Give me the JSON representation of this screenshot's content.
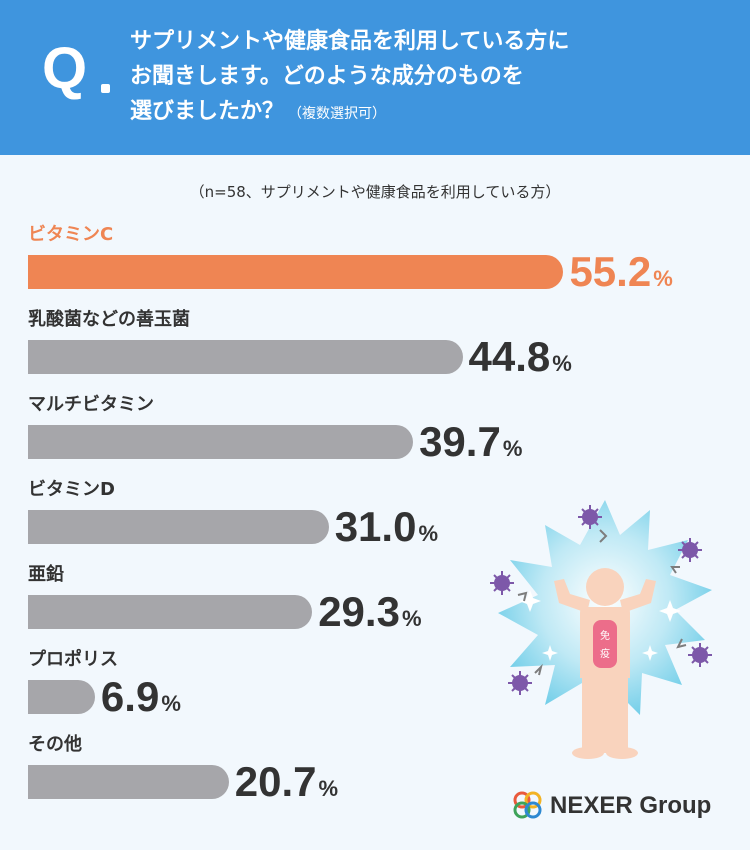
{
  "question": {
    "mark": "Q",
    "line1": "サプリメントや健康食品を利用している方に",
    "line2": "お聞きします。どのような成分のものを",
    "line3": "選びましたか？",
    "note": "（複数選択可）"
  },
  "subtitle": "（n=58、サプリメントや健康食品を利用している方）",
  "illustration": {
    "badge_text": "免疫"
  },
  "logo": {
    "text": "NEXER Group"
  },
  "colors": {
    "header": "#3f95de",
    "highlight": "#ef8553",
    "bar": "#a6a6aa",
    "background": "#f2f8fd"
  },
  "chart_data": {
    "type": "bar",
    "orientation": "horizontal",
    "categories": [
      "ビタミンC",
      "乳酸菌などの善玉菌",
      "マルチビタミン",
      "ビタミンD",
      "亜鉛",
      "プロポリス",
      "その他"
    ],
    "values": [
      55.2,
      44.8,
      39.7,
      31.0,
      29.3,
      6.9,
      20.7
    ],
    "value_labels": [
      "55.2",
      "44.8",
      "39.7",
      "31.0",
      "29.3",
      "6.9",
      "20.7"
    ],
    "unit": "%",
    "highlight_index": 0
  }
}
